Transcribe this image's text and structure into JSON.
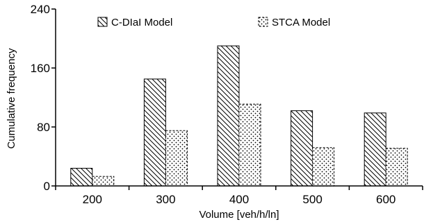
{
  "chart_data": {
    "type": "bar",
    "categories": [
      "200",
      "300",
      "400",
      "500",
      "600"
    ],
    "series": [
      {
        "name": "C-DIaI Model",
        "values": [
          24,
          145,
          190,
          102,
          99
        ],
        "pattern": "diagonal-hatch",
        "color": "#000000"
      },
      {
        "name": "STCA Model",
        "values": [
          13,
          75,
          111,
          52,
          51
        ],
        "pattern": "dotted",
        "color": "#000000"
      }
    ],
    "xlabel": "Volume [veh/h/ln]",
    "ylabel": "Cumulative frequency",
    "yticks": [
      "0",
      "80",
      "160",
      "240"
    ],
    "ylim": [
      0,
      240
    ],
    "grid": false,
    "legend_position": "top"
  }
}
